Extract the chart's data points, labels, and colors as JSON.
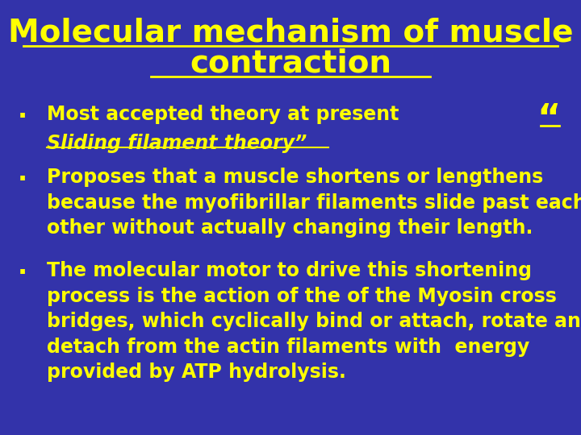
{
  "background_color": "#3333AA",
  "title_line1": "Molecular mechanism of muscle",
  "title_line2": "contraction",
  "title_color": "#FFFF00",
  "title_fontsize": 28,
  "bullet_fontsize": 17,
  "quote_open": "“",
  "quote_close": "”",
  "bullet_char": "·",
  "bullet1_line1": "Most accepted theory at present",
  "bullet1_line2": "Sliding filament theory”",
  "bullet2_text": "Proposes that a muscle shortens or lengthens\nbecause the myofibrillar filaments slide past each\nother without actually changing their length.",
  "bullet3_text": "The molecular motor to drive this shortening\nprocess is the action of the of the Myosin cross\nbridges, which cyclically bind or attach, rotate and\ndetach from the actin filaments with  energy\nprovided by ATP hydrolysis."
}
